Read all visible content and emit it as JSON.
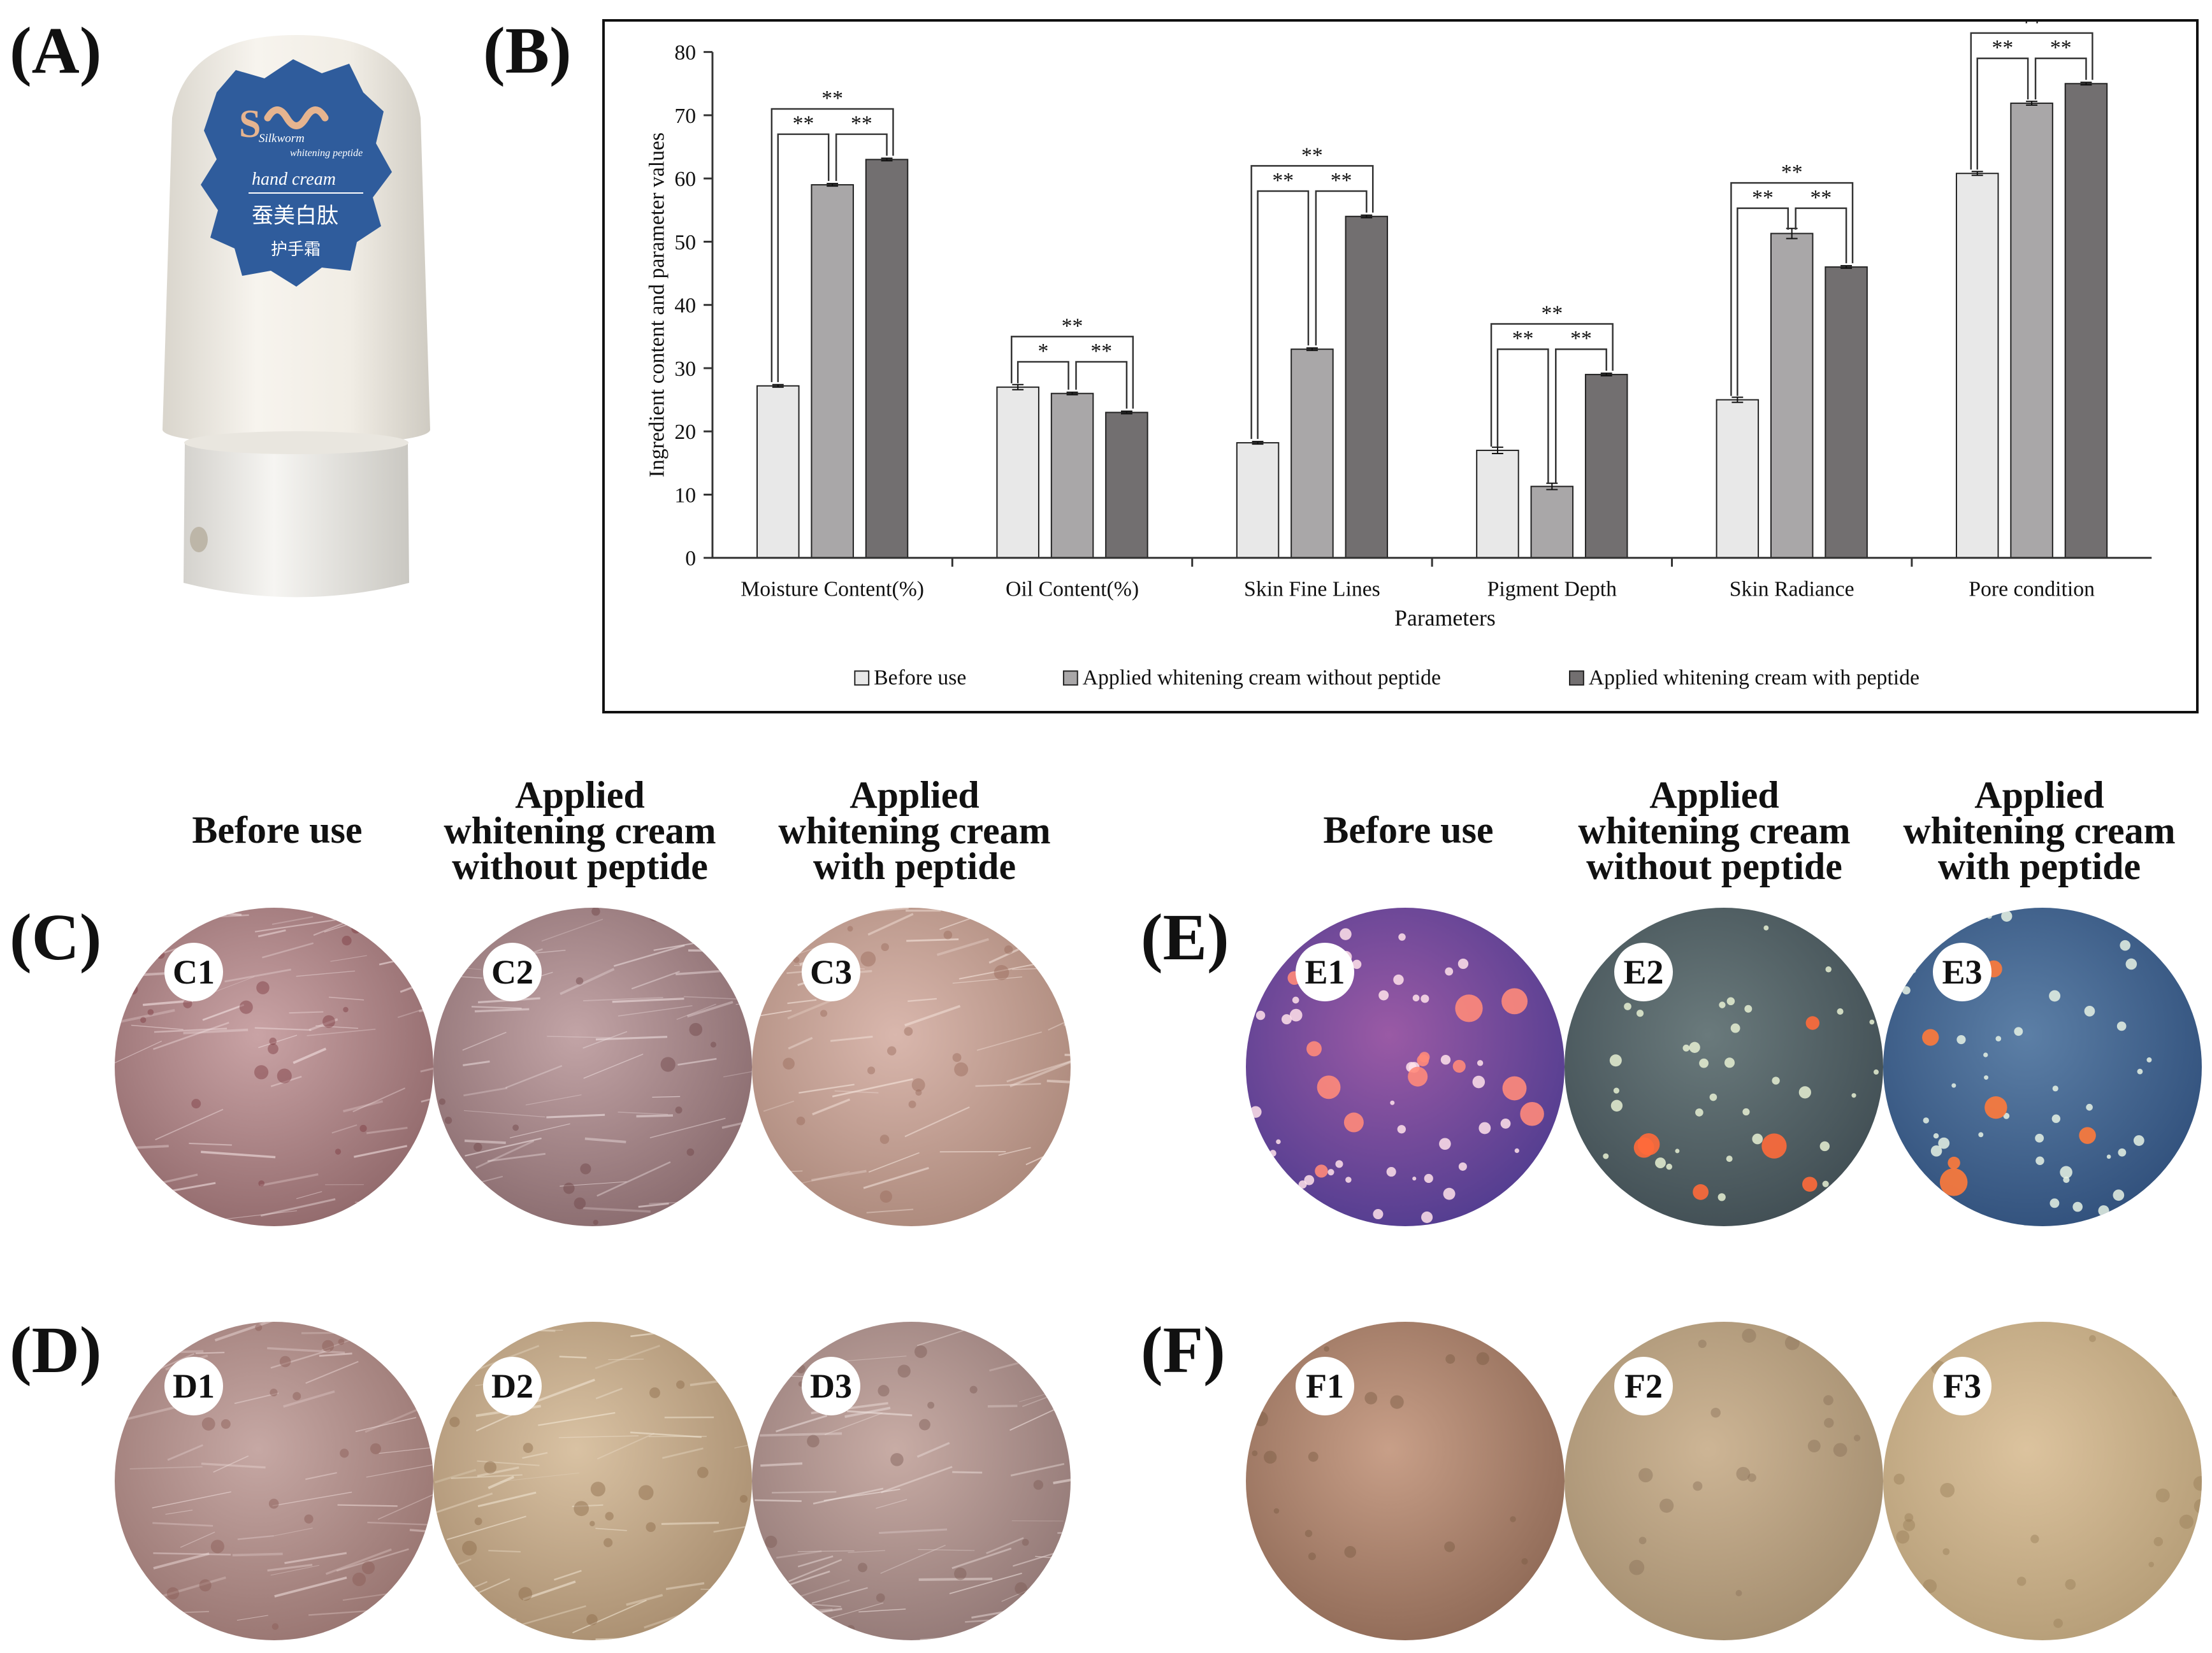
{
  "panels": {
    "A": "(A)",
    "B": "(B)",
    "C": "(C)",
    "D": "(D)",
    "E": "(E)",
    "F": "(F)"
  },
  "product": {
    "label_line1": "Silkworm",
    "label_line2": "whitening peptide",
    "label_line3": "hand cream",
    "label_cn1": "蚕美白肽",
    "label_cn2": "护手霜",
    "label_color": "#2f5c9c"
  },
  "column_headers": {
    "before": "Before use",
    "without_peptide": [
      "Applied",
      "whitening cream",
      "without peptide"
    ],
    "with_peptide": [
      "Applied",
      "whitening cream",
      "with peptide"
    ]
  },
  "circle_labels": {
    "C": [
      "C1",
      "C2",
      "C3"
    ],
    "D": [
      "D1",
      "D2",
      "D3"
    ],
    "E": [
      "E1",
      "E2",
      "E3"
    ],
    "F": [
      "F1",
      "F2",
      "F3"
    ]
  },
  "chart_data": {
    "type": "bar",
    "xlabel": "Parameters",
    "ylabel": "Ingredient content and parameter values",
    "ylim": [
      0,
      80
    ],
    "yticks": [
      0,
      10,
      20,
      30,
      40,
      50,
      60,
      70,
      80
    ],
    "categories": [
      "Moisture Content(%)",
      "Oil Content(%)",
      "Skin Fine Lines",
      "Pigment Depth",
      "Skin Radiance",
      "Pore condition"
    ],
    "series": [
      {
        "name": "Before use",
        "color": "#e8e8e8",
        "values": [
          27.2,
          27.0,
          18.2,
          17.0,
          25.0,
          60.8
        ],
        "errors": [
          0.2,
          0.4,
          0.2,
          0.5,
          0.4,
          0.3
        ]
      },
      {
        "name": "Applied whitening cream without peptide",
        "color": "#a9a7a8",
        "values": [
          59.0,
          26.0,
          33.0,
          11.3,
          51.3,
          71.9
        ],
        "errors": [
          0.2,
          0.2,
          0.2,
          0.5,
          0.8,
          0.3
        ]
      },
      {
        "name": "Applied whitening cream with peptide",
        "color": "#726f70",
        "values": [
          63.0,
          23.0,
          54.0,
          29.0,
          46.0,
          75.0
        ],
        "errors": [
          0.2,
          0.2,
          0.2,
          0.2,
          0.2,
          0.2
        ]
      }
    ],
    "significance": [
      [
        "**",
        "**",
        "**"
      ],
      [
        "*",
        "**",
        "**"
      ],
      [
        "**",
        "**",
        "**"
      ],
      [
        "**",
        "**",
        "**"
      ],
      [
        "**",
        "**",
        "**"
      ],
      [
        "**",
        "**",
        "**"
      ]
    ],
    "legend_position": "bottom",
    "grid": false
  }
}
